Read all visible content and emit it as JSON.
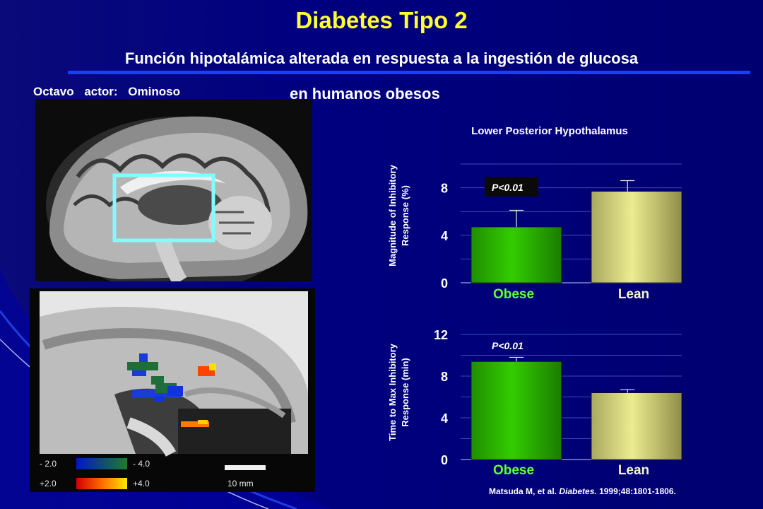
{
  "slide": {
    "title": "Diabetes Tipo 2",
    "subtitle_line1": "Función hipotalámica alterada en respuesta a la ingestión de glucosa",
    "subtitle_line2": "en humanos obesos",
    "factor_label": "Octavo actor: Ominoso",
    "citation_authors": "Matsuda M, et al.",
    "citation_journal": "Diabetes.",
    "citation_details": "1999;48:1801-1806."
  },
  "colors": {
    "title": "#ffff33",
    "background": "#000080",
    "rule": "#1e3cff",
    "obese_bar": "#33cc00",
    "lean_bar": "#ecec90",
    "obese_label": "#66ff33",
    "roi_box": "#7fffff"
  },
  "scan_legend": {
    "neg_low": "- 2.0",
    "neg_high": "- 4.0",
    "pos_low": "+2.0",
    "pos_high": "+4.0",
    "scale_bar": "10 mm"
  },
  "chart_data": [
    {
      "type": "bar",
      "title": "Lower Posterior Hypothalamus",
      "ylabel": "Magnitude of Inhibitory Response (%)",
      "categories": [
        "Obese",
        "Lean"
      ],
      "values": [
        4.7,
        7.7
      ],
      "error": [
        1.4,
        0.9
      ],
      "ylim": [
        0,
        10
      ],
      "ticks": [
        0,
        4,
        8
      ],
      "annotation": "P<0.01"
    },
    {
      "type": "bar",
      "ylabel": "Time to Max Inhibitory Response (min)",
      "categories": [
        "Obese",
        "Lean"
      ],
      "values": [
        9.4,
        6.4
      ],
      "error": [
        0.4,
        0.3
      ],
      "ylim": [
        0,
        12
      ],
      "ticks": [
        0,
        4,
        8,
        12
      ],
      "annotation": "P<0.01"
    }
  ]
}
